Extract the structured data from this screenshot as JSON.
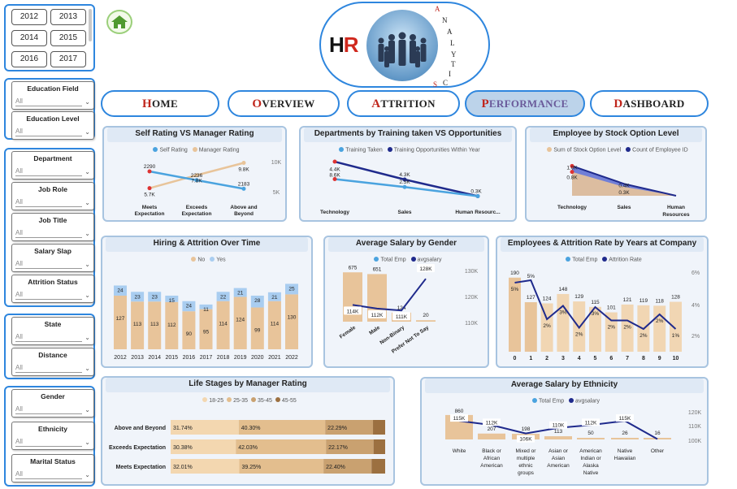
{
  "years": [
    "2012",
    "2013",
    "2014",
    "2015",
    "2016",
    "2017"
  ],
  "education_slicers": [
    {
      "label": "Education Field",
      "value": "All"
    },
    {
      "label": "Education Level",
      "value": "All"
    }
  ],
  "job_slicers": [
    {
      "label": "Department",
      "value": "All"
    },
    {
      "label": "Job Role",
      "value": "All"
    },
    {
      "label": "Job Title",
      "value": "All"
    },
    {
      "label": "Salary Slap",
      "value": "All"
    },
    {
      "label": "Attrition Status",
      "value": "All"
    }
  ],
  "location_slicers": [
    {
      "label": "State",
      "value": "All"
    },
    {
      "label": "Distance",
      "value": "All"
    }
  ],
  "personal_slicers": [
    {
      "label": "Gender",
      "value": "All"
    },
    {
      "label": "Ethnicity",
      "value": "All"
    },
    {
      "label": "Marital Status",
      "value": "All"
    }
  ],
  "logo": {
    "h": "H",
    "r": "R",
    "side": [
      "A",
      "N",
      "A",
      "L",
      "Y",
      "T",
      "I",
      "C",
      "S"
    ]
  },
  "nav": [
    {
      "cap": "H",
      "rest": "OME"
    },
    {
      "cap": "O",
      "rest": "VERVIEW"
    },
    {
      "cap": "A",
      "rest": "TTRITION"
    },
    {
      "cap": "P",
      "rest": "ERFORMANCE",
      "active": true
    },
    {
      "cap": "D",
      "rest": "ASHBOARD"
    }
  ],
  "colors": {
    "accent": "#2e86de",
    "navy": "#1f2a8c",
    "tan": "#e8c49a",
    "tan_dark": "#c8a377",
    "red": "#c0261c",
    "light_blue": "#4aa3df"
  },
  "chart_data": [
    {
      "type": "line",
      "title": "Self Rating VS Manager Rating",
      "categories": [
        "Meets\nExpectation",
        "Exceeds\nExpectation",
        "Above and\nBeyond"
      ],
      "series": [
        {
          "name": "Self Rating",
          "values": [
            2290,
            2236,
            2183
          ]
        },
        {
          "name": "Manager Rating",
          "values": [
            5700,
            7800,
            9800
          ]
        }
      ],
      "value_labels": {
        "self": [
          "2290",
          "2236",
          "2183"
        ],
        "manager": [
          "5.7K",
          "7.8K",
          "9.8K"
        ]
      },
      "axis_right": [
        "10K",
        "5K"
      ]
    },
    {
      "type": "line",
      "title": "Departments by Training taken VS Opportunities",
      "categories": [
        "Technology",
        "Sales",
        "Human Resourc..."
      ],
      "series": [
        {
          "name": "Training Taken",
          "values": [
            4400,
            2500,
            300
          ]
        },
        {
          "name": "Training Opportunities Within Year",
          "values": [
            8600,
            4300,
            300
          ]
        }
      ],
      "value_labels": {
        "taken": [
          "4.4K",
          "2.5K",
          "0.3K"
        ],
        "opps": [
          "8.6K",
          "4.3K",
          "0.3K"
        ]
      }
    },
    {
      "type": "area",
      "title": "Employee by Stock Option Level",
      "categories": [
        "Technology",
        "Sales",
        "Human\nResources"
      ],
      "series": [
        {
          "name": "Sum of Stock Option Level",
          "values": [
            800,
            300,
            0
          ]
        },
        {
          "name": "Count of Employee ID",
          "values": [
            1000,
            400,
            0
          ]
        }
      ],
      "value_labels": {
        "stock": [
          "0.8K",
          "0.3K"
        ],
        "count": [
          "1.0K",
          "0.4K"
        ]
      }
    },
    {
      "type": "bar",
      "title": "Hiring & Attrition Over Time",
      "categories": [
        "2012",
        "2013",
        "2014",
        "2015",
        "2016",
        "2017",
        "2018",
        "2019",
        "2020",
        "2021",
        "2022"
      ],
      "series": [
        {
          "name": "No",
          "values": [
            127,
            113,
            113,
            112,
            90,
            95,
            114,
            124,
            99,
            114,
            130
          ]
        },
        {
          "name": "Yes",
          "values": [
            24,
            23,
            23,
            15,
            24,
            11,
            22,
            21,
            28,
            21,
            25
          ]
        }
      ]
    },
    {
      "type": "bar",
      "title": "Average Salary by Gender",
      "categories": [
        "Female",
        "Male",
        "Non-Binary",
        "Prefer Not To Say"
      ],
      "series": [
        {
          "name": "Total Emp",
          "values": [
            675,
            651,
            124,
            20
          ]
        },
        {
          "name": "avgsalary",
          "values": [
            114000,
            112000,
            111000,
            128000
          ]
        }
      ],
      "value_labels": {
        "salary": [
          "114K",
          "112K",
          "111K",
          "128K"
        ]
      },
      "axis_right": [
        "130K",
        "120K",
        "110K"
      ]
    },
    {
      "type": "bar",
      "title": "Employees & Attrition Rate by Years at Company",
      "categories": [
        "0",
        "1",
        "2",
        "3",
        "4",
        "5",
        "6",
        "7",
        "8",
        "9",
        "10"
      ],
      "series": [
        {
          "name": "Total Emp",
          "values": [
            190,
            127,
            124,
            148,
            129,
            115,
            101,
            121,
            119,
            118,
            128
          ]
        },
        {
          "name": "Attrition Rate",
          "values": [
            5,
            5,
            2,
            3,
            2,
            3,
            2,
            2,
            2,
            2,
            1
          ]
        }
      ],
      "axis_right": [
        "6%",
        "4%",
        "2%"
      ]
    },
    {
      "type": "table",
      "title": "Life Stages by Manager Rating",
      "legend": [
        "18-25",
        "25-35",
        "35-45",
        "45-55"
      ],
      "rows": [
        {
          "label": "Above and Beyond",
          "values": [
            31.74,
            40.3,
            22.29,
            5.67
          ],
          "text": [
            "31.74%",
            "40.30%",
            "22.29%"
          ]
        },
        {
          "label": "Exceeds Expectation",
          "values": [
            30.38,
            42.03,
            22.17,
            5.42
          ],
          "text": [
            "30.38%",
            "42.03%",
            "22.17%"
          ]
        },
        {
          "label": "Meets Expectation",
          "values": [
            32.01,
            39.25,
            22.4,
            6.34
          ],
          "text": [
            "32.01%",
            "39.25%",
            "22.40%"
          ]
        }
      ]
    },
    {
      "type": "bar",
      "title": "Average Salary by Ethnicity",
      "categories": [
        "White",
        "Black or\nAfrican\nAmerican",
        "Mixed or\nmultiple\nethnic\ngroups",
        "Asian or\nAsian\nAmerican",
        "American\nIndian or\nAlaska\nNative",
        "Native\nHawaiian",
        "Other"
      ],
      "series": [
        {
          "name": "Total Emp",
          "values": [
            860,
            207,
            198,
            113,
            50,
            26,
            16
          ]
        },
        {
          "name": "avgsalary",
          "values": [
            115000,
            112000,
            106000,
            110000,
            112000,
            115000,
            102000
          ]
        }
      ],
      "value_labels": {
        "salary": [
          "115K",
          "112K",
          "106K",
          "110K",
          "112K",
          "115K"
        ]
      },
      "axis_right": [
        "120K",
        "110K",
        "100K"
      ]
    }
  ]
}
